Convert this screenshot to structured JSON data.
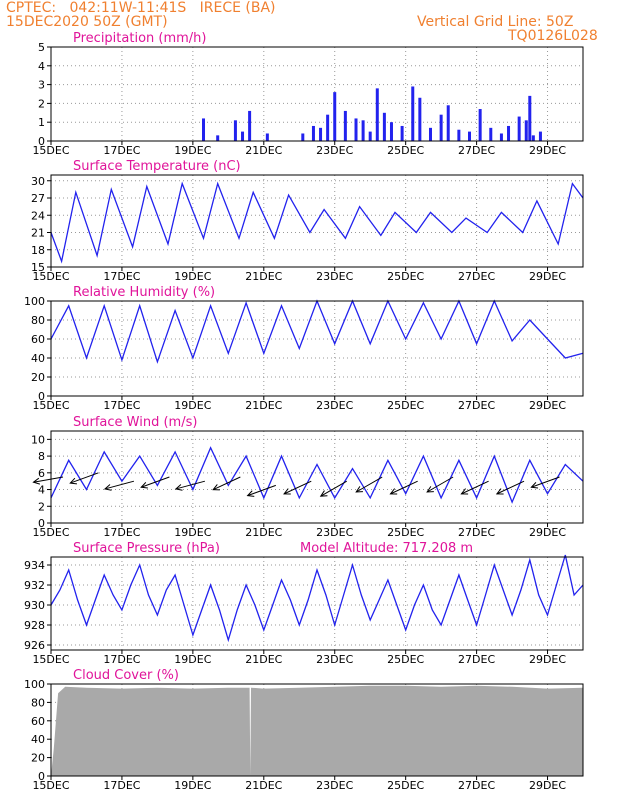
{
  "header": {
    "line1": "CPTEC:   042:11W-11:41S   IRECE (BA)",
    "line2": "15DEC2020 50Z (GMT)",
    "right1": "Vertical Grid Line: 50Z",
    "right2": "TQ0126L028"
  },
  "colors": {
    "header": "#f08030",
    "title": "#e0149a",
    "line": "#2222ee",
    "bar": "#2222ee",
    "cloud": "#a9a9a9"
  },
  "x_ticks": [
    "15DEC",
    "17DEC",
    "19DEC",
    "21DEC",
    "23DEC",
    "25DEC",
    "27DEC",
    "29DEC"
  ],
  "x_tick_days": [
    0,
    2,
    4,
    6,
    8,
    10,
    12,
    14
  ],
  "chart_data": [
    {
      "id": "precip",
      "type": "bar",
      "title": "Precipitation (mm/h)",
      "ylim": [
        0,
        5
      ],
      "yticks": [
        "0",
        "1",
        "2",
        "3",
        "4",
        "5"
      ],
      "ytick_values": [
        0,
        1,
        2,
        3,
        4,
        5
      ],
      "x_days": [
        4.3,
        4.7,
        5.2,
        5.4,
        5.6,
        6.1,
        7.1,
        7.4,
        7.6,
        7.8,
        8.0,
        8.3,
        8.6,
        8.8,
        9.0,
        9.2,
        9.4,
        9.6,
        9.9,
        10.2,
        10.4,
        10.7,
        11.0,
        11.2,
        11.5,
        11.8,
        12.1,
        12.4,
        12.7,
        12.9,
        13.2,
        13.4,
        13.5,
        13.6,
        13.8
      ],
      "values": [
        1.2,
        0.3,
        1.1,
        0.5,
        1.6,
        0.4,
        0.4,
        0.8,
        0.7,
        1.4,
        2.6,
        1.6,
        1.2,
        1.1,
        0.5,
        2.8,
        1.5,
        1.0,
        0.8,
        2.9,
        2.3,
        0.7,
        1.4,
        1.9,
        0.6,
        0.5,
        1.7,
        0.7,
        0.4,
        0.8,
        1.3,
        1.1,
        2.4,
        0.3,
        0.5
      ]
    },
    {
      "id": "temp",
      "type": "line",
      "title": "Surface Temperature (nC)",
      "ylim": [
        15,
        31
      ],
      "yticks": [
        "15",
        "18",
        "21",
        "24",
        "27",
        "30"
      ],
      "ytick_values": [
        15,
        18,
        21,
        24,
        27,
        30
      ],
      "series": [
        {
          "x_days": [
            0,
            0.3,
            0.7,
            1.3,
            1.7,
            2.3,
            2.7,
            3.3,
            3.7,
            4.3,
            4.7,
            5.3,
            5.7,
            6.3,
            6.7,
            7.3,
            7.7,
            8.3,
            8.7,
            9.3,
            9.7,
            10.3,
            10.7,
            11.3,
            11.7,
            12.3,
            12.7,
            13.3,
            13.7,
            14.3,
            14.7,
            15
          ],
          "values": [
            21,
            16,
            28,
            17,
            28.5,
            18.5,
            29,
            19,
            29.5,
            20,
            29.5,
            20,
            28,
            20,
            27.5,
            21,
            25,
            20,
            25.5,
            20.5,
            24.5,
            21,
            24.5,
            21,
            23.5,
            21,
            24.5,
            21,
            26.5,
            19,
            29.5,
            27
          ]
        }
      ]
    },
    {
      "id": "rh",
      "type": "line",
      "title": "Relative Humidity (%)",
      "ylim": [
        0,
        100
      ],
      "yticks": [
        "0",
        "20",
        "40",
        "60",
        "80",
        "100"
      ],
      "ytick_values": [
        0,
        20,
        40,
        60,
        80,
        100
      ],
      "series": [
        {
          "x_days": [
            0,
            0.5,
            1.0,
            1.5,
            2.0,
            2.5,
            3.0,
            3.5,
            4.0,
            4.5,
            5.0,
            5.5,
            6.0,
            6.5,
            7.0,
            7.5,
            8.0,
            8.5,
            9.0,
            9.5,
            10.0,
            10.5,
            11.0,
            11.5,
            12.0,
            12.5,
            13.0,
            13.5,
            14.0,
            14.5,
            15
          ],
          "values": [
            60,
            95,
            40,
            95,
            38,
            95,
            36,
            90,
            40,
            95,
            45,
            98,
            45,
            95,
            50,
            100,
            55,
            100,
            55,
            100,
            60,
            98,
            60,
            100,
            55,
            100,
            58,
            80,
            60,
            40,
            45
          ]
        }
      ]
    },
    {
      "id": "wind",
      "type": "line",
      "title": "Surface Wind (m/s)",
      "ylim": [
        0,
        11
      ],
      "yticks": [
        "0",
        "2",
        "4",
        "6",
        "8",
        "10"
      ],
      "ytick_values": [
        0,
        2,
        4,
        6,
        8,
        10
      ],
      "series": [
        {
          "x_days": [
            0,
            0.5,
            1.0,
            1.5,
            2.0,
            2.5,
            3.0,
            3.5,
            4.0,
            4.5,
            5.0,
            5.5,
            6.0,
            6.5,
            7.0,
            7.5,
            8.0,
            8.5,
            9.0,
            9.5,
            10.0,
            10.5,
            11.0,
            11.5,
            12.0,
            12.5,
            13.0,
            13.5,
            14.0,
            14.5,
            15
          ],
          "values": [
            3,
            7.5,
            4,
            8.5,
            5,
            8,
            4.5,
            8.5,
            4,
            9,
            4.5,
            8,
            3,
            8,
            3,
            7,
            3,
            6.5,
            3,
            7.5,
            3.5,
            8,
            3,
            7.5,
            3,
            8,
            2.5,
            7.5,
            3.5,
            7,
            5
          ]
        }
      ],
      "vectors": {
        "x_days": [
          0,
          1,
          2,
          3,
          4,
          5,
          6,
          7,
          8,
          9,
          10,
          11,
          12,
          13,
          14
        ],
        "speeds": [
          5.5,
          6,
          5,
          5.5,
          5,
          5.5,
          4.5,
          5,
          5,
          5.5,
          5,
          5.5,
          5,
          5,
          5.5
        ],
        "dir_deg": [
          190,
          200,
          195,
          200,
          195,
          205,
          200,
          205,
          210,
          210,
          205,
          210,
          205,
          205,
          200
        ]
      }
    },
    {
      "id": "pressure",
      "type": "line",
      "title": "Surface Pressure (hPa)",
      "subtitle": "Model Altitude: 717.208  m",
      "ylim": [
        925.5,
        934.8
      ],
      "yticks": [
        "926",
        "928",
        "930",
        "932",
        "934"
      ],
      "ytick_values": [
        926,
        928,
        930,
        932,
        934
      ],
      "series": [
        {
          "x_days": [
            0,
            0.25,
            0.5,
            0.75,
            1.0,
            1.25,
            1.5,
            1.75,
            2.0,
            2.25,
            2.5,
            2.75,
            3.0,
            3.25,
            3.5,
            3.75,
            4.0,
            4.25,
            4.5,
            4.75,
            5.0,
            5.25,
            5.5,
            5.75,
            6.0,
            6.25,
            6.5,
            6.75,
            7.0,
            7.25,
            7.5,
            7.75,
            8.0,
            8.25,
            8.5,
            8.75,
            9.0,
            9.25,
            9.5,
            9.75,
            10.0,
            10.25,
            10.5,
            10.75,
            11.0,
            11.25,
            11.5,
            11.75,
            12.0,
            12.25,
            12.5,
            12.75,
            13.0,
            13.25,
            13.5,
            13.75,
            14.0,
            14.25,
            14.5,
            14.75,
            15
          ],
          "values": [
            930,
            931.5,
            933.5,
            930.5,
            928,
            930.5,
            933,
            931,
            929.5,
            932,
            934,
            931,
            929,
            931.5,
            933,
            930,
            927,
            929.5,
            932,
            929.5,
            926.5,
            929.5,
            932,
            930,
            927.5,
            930,
            932.5,
            930.5,
            928,
            930.5,
            933.5,
            931,
            928,
            931,
            934,
            931,
            928.5,
            930.5,
            932.5,
            930,
            927.5,
            930,
            932,
            929.5,
            928,
            930.5,
            933,
            930.5,
            928,
            931,
            934,
            931.5,
            929,
            931.5,
            934.5,
            931,
            929,
            932,
            935,
            931,
            932
          ]
        }
      ]
    },
    {
      "id": "cloud",
      "type": "area",
      "title": "Cloud Cover (%)",
      "ylim": [
        0,
        100
      ],
      "yticks": [
        "0",
        "20",
        "40",
        "60",
        "80",
        "100"
      ],
      "ytick_values": [
        0,
        20,
        40,
        60,
        80,
        100
      ],
      "series": [
        {
          "x_days": [
            0,
            0.08,
            0.2,
            0.4,
            1,
            2,
            3,
            4,
            5,
            5.6,
            5.62,
            5.64,
            6,
            7,
            8,
            9,
            10,
            11,
            12,
            13,
            14,
            15
          ],
          "values": [
            0,
            30,
            90,
            97,
            96,
            95,
            96,
            95,
            96,
            96,
            0,
            96,
            95,
            96,
            97,
            98,
            98,
            97,
            98,
            97,
            95,
            96
          ]
        }
      ]
    }
  ]
}
